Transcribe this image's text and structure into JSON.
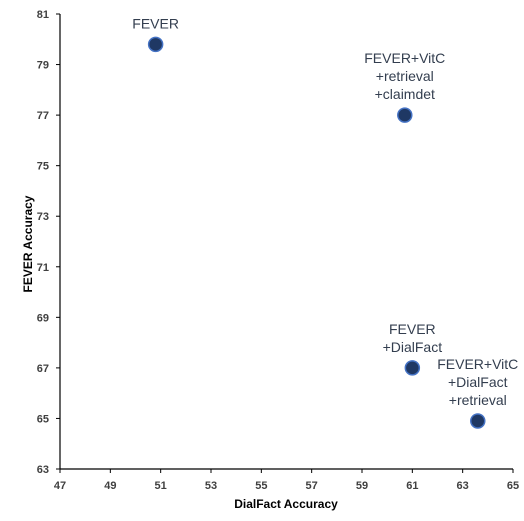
{
  "chart_data": {
    "type": "scatter",
    "title": "",
    "xlabel": "DialFact Accuracy",
    "ylabel": "FEVER Accuracy",
    "xlim": [
      47,
      65
    ],
    "ylim": [
      63,
      81
    ],
    "xticks": [
      "47",
      "49",
      "51",
      "53",
      "55",
      "57",
      "59",
      "61",
      "63",
      "65"
    ],
    "yticks": [
      "63",
      "65",
      "67",
      "69",
      "71",
      "73",
      "75",
      "77",
      "79",
      "81"
    ],
    "grid": false,
    "legend": "none",
    "marker_color": "#1f3864",
    "marker_stroke": "#4472c4",
    "label_color": "#333e4f",
    "points": [
      {
        "x": 50.8,
        "y": 79.8,
        "label": [
          "FEVER"
        ]
      },
      {
        "x": 60.7,
        "y": 77.0,
        "label": [
          "FEVER+VitC",
          "+retrieval",
          "+claimdet"
        ]
      },
      {
        "x": 61.0,
        "y": 67.0,
        "label": [
          "FEVER",
          "+DialFact"
        ]
      },
      {
        "x": 63.6,
        "y": 64.9,
        "label": [
          "FEVER+VitC",
          "+DialFact",
          "+retrieval"
        ]
      }
    ]
  }
}
